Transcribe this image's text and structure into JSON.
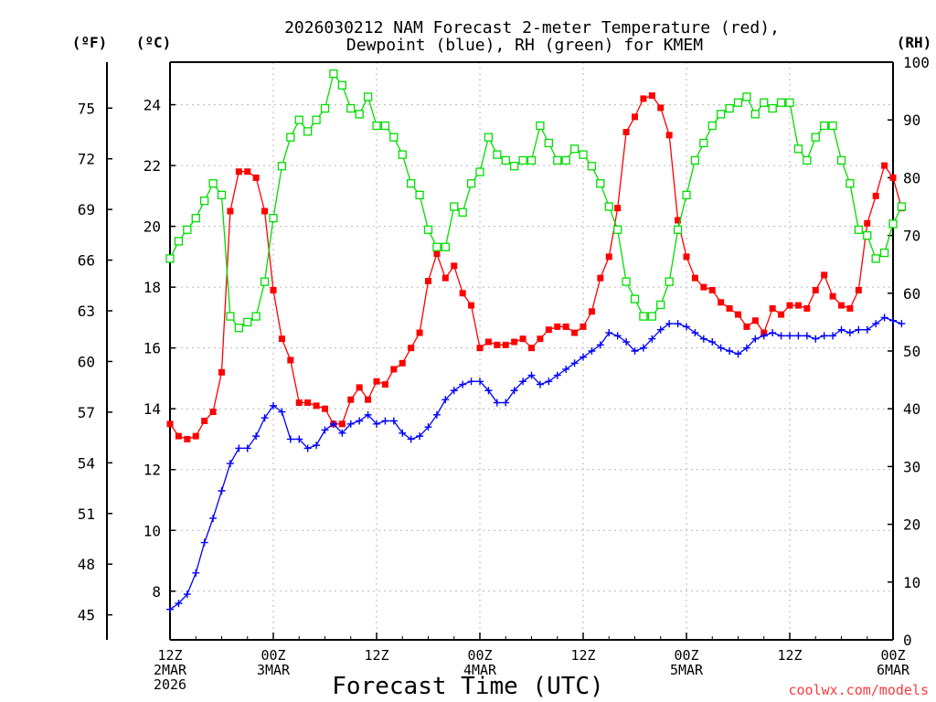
{
  "chart_data": {
    "type": "line",
    "title_line1": "2026030212 NAM Forecast 2-meter Temperature (red),",
    "title_line2": "Dewpoint (blue), RH (green) for KMEM",
    "left_unit_f": "(ºF)",
    "left_unit_c": "(ºC)",
    "right_unit": "(RH)",
    "xlabel": "Forecast Time (UTC)",
    "credit": "coolwx.com/models",
    "grid": true,
    "x_range_hours": [
      0,
      84
    ],
    "x_step_hours": 1,
    "x_ticks": [
      {
        "hour": 0,
        "lines": [
          "12Z",
          "2MAR",
          "2026"
        ]
      },
      {
        "hour": 12,
        "lines": [
          "00Z",
          "3MAR"
        ]
      },
      {
        "hour": 24,
        "lines": [
          "12Z"
        ]
      },
      {
        "hour": 36,
        "lines": [
          "00Z",
          "4MAR"
        ]
      },
      {
        "hour": 48,
        "lines": [
          "12Z"
        ]
      },
      {
        "hour": 60,
        "lines": [
          "00Z",
          "5MAR"
        ]
      },
      {
        "hour": 72,
        "lines": [
          "12Z"
        ]
      },
      {
        "hour": 84,
        "lines": [
          "00Z",
          "6MAR"
        ]
      }
    ],
    "celsius_axis": {
      "range": [
        6.4,
        25.4
      ],
      "ticks": [
        "8",
        "10",
        "12",
        "14",
        "16",
        "18",
        "20",
        "22",
        "24"
      ]
    },
    "fahrenheit_axis": {
      "ticks": [
        "45",
        "48",
        "51",
        "54",
        "57",
        "60",
        "63",
        "66",
        "69",
        "72",
        "75"
      ]
    },
    "rh_axis": {
      "range": [
        0,
        100
      ],
      "ticks": [
        "0",
        "10",
        "20",
        "30",
        "40",
        "50",
        "60",
        "70",
        "80",
        "90",
        "100"
      ]
    },
    "colors": {
      "temperature": "#ff0000",
      "dewpoint": "#0000ff",
      "rh": "#00dd00"
    },
    "series": [
      {
        "name": "Temperature",
        "axis": "celsius",
        "marker": "filled-square",
        "values": [
          13.5,
          13.1,
          13.0,
          13.1,
          13.6,
          13.9,
          15.2,
          20.5,
          21.8,
          21.8,
          21.6,
          20.5,
          17.9,
          16.3,
          15.6,
          14.2,
          14.2,
          14.1,
          14.0,
          13.5,
          13.5,
          14.3,
          14.7,
          14.3,
          14.9,
          14.8,
          15.3,
          15.5,
          16.0,
          16.5,
          18.2,
          19.1,
          18.3,
          18.7,
          17.8,
          17.4,
          16.0,
          16.2,
          16.1,
          16.1,
          16.2,
          16.3,
          16.0,
          16.3,
          16.6,
          16.7,
          16.7,
          16.5,
          16.7,
          17.2,
          18.3,
          19.0,
          20.6,
          23.1,
          23.6,
          24.2,
          24.3,
          23.9,
          23.0,
          20.2,
          19.0,
          18.3,
          18.0,
          17.9,
          17.5,
          17.3,
          17.1,
          16.7,
          16.9,
          16.5,
          17.3,
          17.1,
          17.4,
          17.4,
          17.3,
          17.9,
          18.4,
          17.7,
          17.4,
          17.3,
          17.9,
          20.1,
          21.0,
          22.0,
          21.6,
          20.6
        ]
      },
      {
        "name": "Dewpoint",
        "axis": "celsius",
        "marker": "plus",
        "values": [
          7.4,
          7.6,
          7.9,
          8.6,
          9.6,
          10.4,
          11.3,
          12.2,
          12.7,
          12.7,
          13.1,
          13.7,
          14.1,
          13.9,
          13.0,
          13.0,
          12.7,
          12.8,
          13.3,
          13.5,
          13.2,
          13.5,
          13.6,
          13.8,
          13.5,
          13.6,
          13.6,
          13.2,
          13.0,
          13.1,
          13.4,
          13.8,
          14.3,
          14.6,
          14.8,
          14.9,
          14.9,
          14.6,
          14.2,
          14.2,
          14.6,
          14.9,
          15.1,
          14.8,
          14.9,
          15.1,
          15.3,
          15.5,
          15.7,
          15.9,
          16.1,
          16.5,
          16.4,
          16.2,
          15.9,
          16.0,
          16.3,
          16.6,
          16.8,
          16.8,
          16.7,
          16.5,
          16.3,
          16.2,
          16.0,
          15.9,
          15.8,
          16.0,
          16.3,
          16.4,
          16.5,
          16.4,
          16.4,
          16.4,
          16.4,
          16.3,
          16.4,
          16.4,
          16.6,
          16.5,
          16.6,
          16.6,
          16.8,
          17.0,
          16.9,
          16.8
        ]
      },
      {
        "name": "RH",
        "axis": "rh",
        "marker": "open-square",
        "values": [
          66,
          69,
          71,
          73,
          76,
          79,
          77,
          56,
          54,
          55,
          56,
          62,
          73,
          82,
          87,
          90,
          88,
          90,
          92,
          98,
          96,
          92,
          91,
          94,
          89,
          89,
          87,
          84,
          79,
          77,
          71,
          68,
          68,
          75,
          74,
          79,
          81,
          87,
          84,
          83,
          82,
          83,
          83,
          89,
          86,
          83,
          83,
          85,
          84,
          82,
          79,
          75,
          71,
          62,
          59,
          56,
          56,
          58,
          62,
          71,
          77,
          83,
          86,
          89,
          91,
          92,
          93,
          94,
          91,
          93,
          92,
          93,
          93,
          85,
          83,
          87,
          89,
          89,
          83,
          79,
          71,
          70,
          66,
          67,
          72,
          75
        ]
      }
    ]
  }
}
